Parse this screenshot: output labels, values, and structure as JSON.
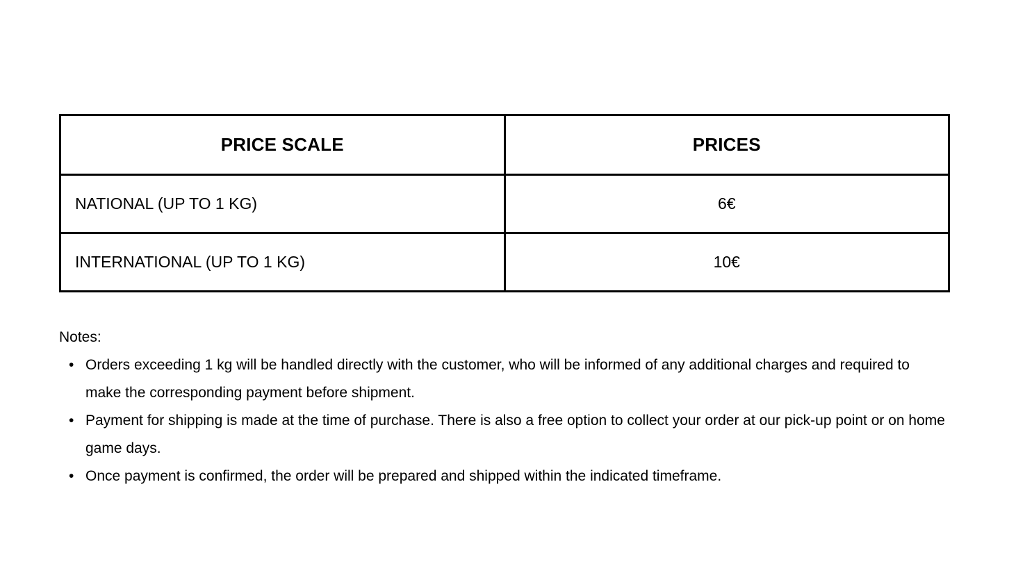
{
  "table": {
    "headers": [
      "PRICE SCALE",
      "PRICES"
    ],
    "rows": [
      {
        "label": "NATIONAL (UP TO 1 KG)",
        "price": "6€"
      },
      {
        "label": "INTERNATIONAL (UP TO 1 KG)",
        "price": "10€"
      }
    ]
  },
  "notes": {
    "title": "Notes:",
    "bullet": "•",
    "items": [
      "Orders exceeding 1 kg will be handled directly with the customer, who will be informed of any additional charges and required to make the corresponding payment before shipment.",
      "Payment for shipping is made at the time of purchase. There is also a free option to collect your order at our pick-up point or on home game days.",
      "Once payment is confirmed, the order will be prepared and shipped within the indicated timeframe."
    ]
  },
  "colors": {
    "text": "#000000",
    "border": "#000000",
    "background": "#ffffff"
  }
}
